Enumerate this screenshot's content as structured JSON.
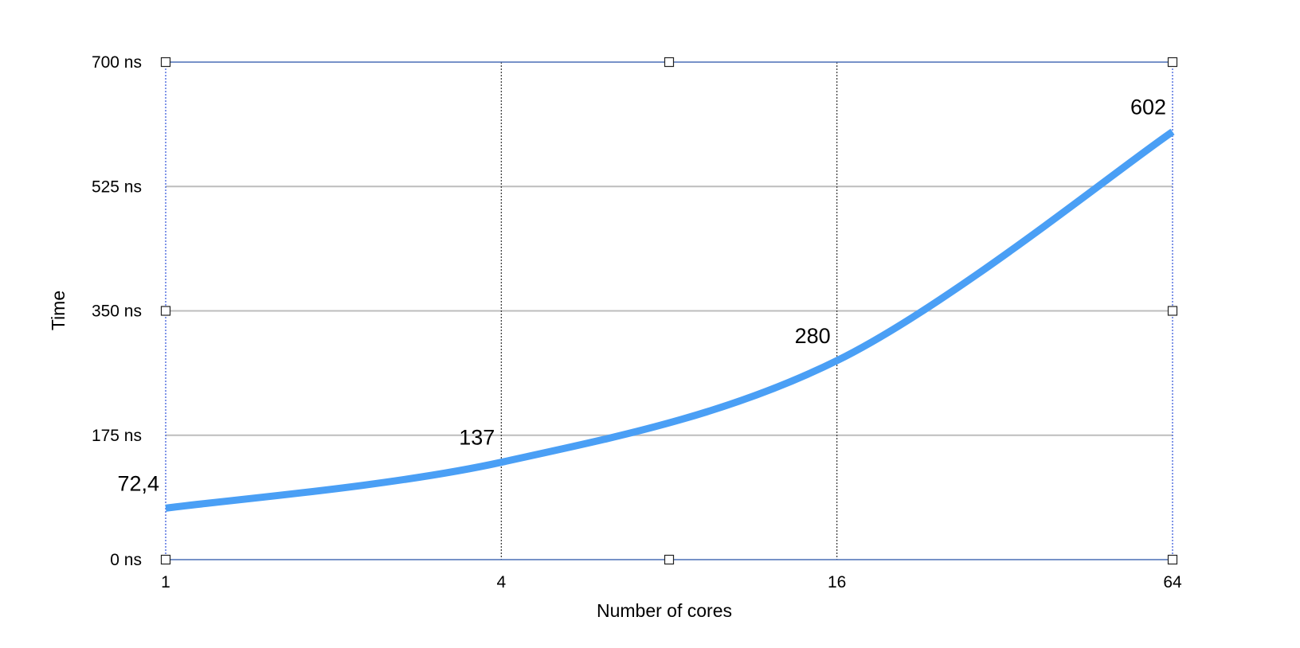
{
  "chart_data": {
    "type": "line",
    "title": "",
    "xlabel": "Number of cores",
    "ylabel": "Time",
    "x_scale": "log2",
    "x_ticks": [
      "1",
      "4",
      "16",
      "64"
    ],
    "y_ticks": [
      "0 ns",
      "175 ns",
      "350 ns",
      "525 ns",
      "700 ns"
    ],
    "ylim": [
      0,
      700
    ],
    "grid": true,
    "legend": "none",
    "series": [
      {
        "x": [
          1,
          4,
          16,
          64
        ],
        "values": [
          72.4,
          137,
          280,
          602
        ],
        "labels": [
          "72,4",
          "137",
          "280",
          "602"
        ],
        "color": "#4a9ff5"
      }
    ]
  }
}
